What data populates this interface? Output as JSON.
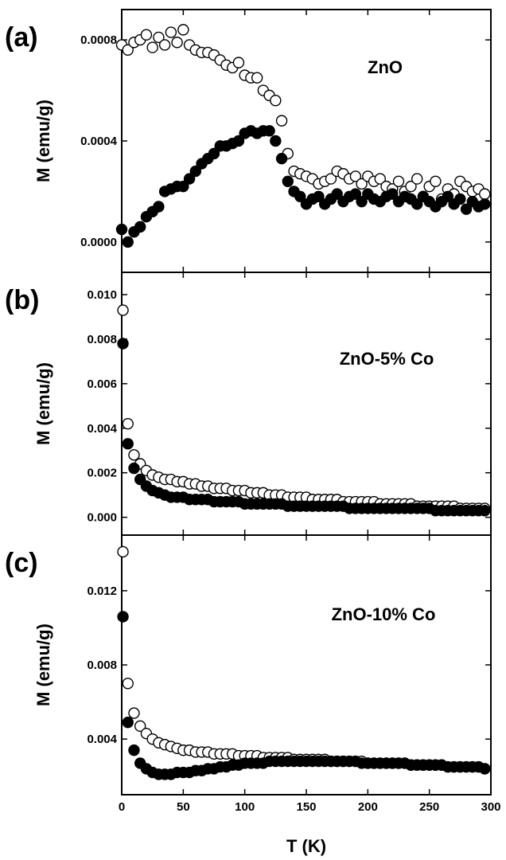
{
  "chart_data": [
    {
      "panel": "(a)",
      "type": "scatter",
      "annotation": "ZnO",
      "ylabel": "M (emu/g)",
      "xlim": [
        0,
        300
      ],
      "ylim": [
        -0.00012,
        0.00092
      ],
      "yticks": [
        0,
        0.0004,
        0.0008
      ],
      "ytick_labels": [
        "0.0000",
        "0.0004",
        "0.0008"
      ],
      "series": [
        {
          "marker": "open-circle",
          "x": [
            0,
            5,
            10,
            15,
            20,
            25,
            30,
            35,
            40,
            45,
            50,
            55,
            60,
            65,
            70,
            75,
            80,
            85,
            90,
            95,
            100,
            105,
            110,
            115,
            120,
            125,
            130,
            135,
            140,
            145,
            150,
            155,
            160,
            165,
            170,
            175,
            180,
            185,
            190,
            195,
            200,
            205,
            210,
            215,
            220,
            225,
            230,
            235,
            240,
            245,
            250,
            255,
            260,
            265,
            270,
            275,
            280,
            285,
            290,
            295
          ],
          "y": [
            0.00078,
            0.00076,
            0.00079,
            0.0008,
            0.00082,
            0.00077,
            0.00081,
            0.00078,
            0.00083,
            0.00079,
            0.00084,
            0.00078,
            0.00076,
            0.00075,
            0.00075,
            0.00074,
            0.00072,
            0.0007,
            0.00069,
            0.00071,
            0.00066,
            0.00065,
            0.00065,
            0.0006,
            0.00058,
            0.00056,
            0.00048,
            0.00035,
            0.00028,
            0.00027,
            0.00026,
            0.00025,
            0.00023,
            0.00024,
            0.00025,
            0.00028,
            0.00027,
            0.00025,
            0.00026,
            0.00023,
            0.00026,
            0.00024,
            0.00025,
            0.00022,
            0.00021,
            0.00024,
            0.0002,
            0.00022,
            0.00025,
            0.00018,
            0.00022,
            0.00024,
            0.00017,
            0.00021,
            0.00019,
            0.00024,
            0.00022,
            0.0002,
            0.00021,
            0.00019
          ]
        },
        {
          "marker": "filled-circle",
          "x": [
            0,
            5,
            10,
            15,
            20,
            25,
            30,
            35,
            40,
            45,
            50,
            55,
            60,
            65,
            70,
            75,
            80,
            85,
            90,
            95,
            100,
            105,
            110,
            115,
            120,
            125,
            130,
            135,
            140,
            145,
            150,
            155,
            160,
            165,
            170,
            175,
            180,
            185,
            190,
            195,
            200,
            205,
            210,
            215,
            220,
            225,
            230,
            235,
            240,
            245,
            250,
            255,
            260,
            265,
            270,
            275,
            280,
            285,
            290,
            295
          ],
          "y": [
            5e-05,
            0.0,
            4e-05,
            6e-05,
            0.0001,
            0.00012,
            0.00014,
            0.0002,
            0.00021,
            0.00022,
            0.00022,
            0.00025,
            0.00028,
            0.00031,
            0.00033,
            0.00035,
            0.00038,
            0.00038,
            0.00039,
            0.0004,
            0.00043,
            0.00044,
            0.00043,
            0.00044,
            0.00044,
            0.0004,
            0.00033,
            0.00024,
            0.0002,
            0.00018,
            0.00015,
            0.00017,
            0.00018,
            0.00015,
            0.00017,
            0.00019,
            0.00016,
            0.00018,
            0.00019,
            0.00016,
            0.00019,
            0.00017,
            0.00016,
            0.00018,
            0.00019,
            0.00016,
            0.00018,
            0.00017,
            0.00015,
            0.00018,
            0.00016,
            0.00014,
            0.00016,
            0.00018,
            0.00015,
            0.00017,
            0.00013,
            0.00016,
            0.00014,
            0.00015
          ]
        }
      ]
    },
    {
      "panel": "(b)",
      "type": "scatter",
      "annotation": "ZnO-5% Co",
      "ylabel": "M (emu/g)",
      "xlim": [
        0,
        300
      ],
      "ylim": [
        -0.0008,
        0.011
      ],
      "yticks": [
        0,
        0.002,
        0.004,
        0.006,
        0.008,
        0.01
      ],
      "ytick_labels": [
        "0.000",
        "0.002",
        "0.004",
        "0.006",
        "0.008",
        "0.010"
      ],
      "series": [
        {
          "marker": "open-circle",
          "x": [
            1,
            5,
            10,
            15,
            20,
            25,
            30,
            35,
            40,
            45,
            50,
            55,
            60,
            65,
            70,
            75,
            80,
            85,
            90,
            95,
            100,
            105,
            110,
            115,
            120,
            125,
            130,
            135,
            140,
            145,
            150,
            155,
            160,
            165,
            170,
            175,
            180,
            185,
            190,
            195,
            200,
            205,
            210,
            215,
            220,
            225,
            230,
            235,
            240,
            245,
            250,
            255,
            260,
            265,
            270,
            275,
            280,
            285,
            290,
            295
          ],
          "y": [
            0.0093,
            0.0042,
            0.0028,
            0.0024,
            0.0021,
            0.0019,
            0.0018,
            0.0017,
            0.0017,
            0.0016,
            0.0016,
            0.0015,
            0.0015,
            0.0014,
            0.0014,
            0.0013,
            0.0013,
            0.0013,
            0.0012,
            0.0012,
            0.0012,
            0.0011,
            0.0011,
            0.0011,
            0.001,
            0.001,
            0.001,
            0.0009,
            0.0009,
            0.0009,
            0.0009,
            0.0008,
            0.0008,
            0.0008,
            0.0008,
            0.0008,
            0.0007,
            0.0007,
            0.0007,
            0.0007,
            0.0007,
            0.0007,
            0.0006,
            0.0006,
            0.0006,
            0.0006,
            0.0006,
            0.0006,
            0.0005,
            0.0005,
            0.0005,
            0.0005,
            0.0005,
            0.0005,
            0.0005,
            0.0004,
            0.0004,
            0.0004,
            0.0004,
            0.0004
          ]
        },
        {
          "marker": "filled-circle",
          "x": [
            1,
            5,
            10,
            15,
            20,
            25,
            30,
            35,
            40,
            45,
            50,
            55,
            60,
            65,
            70,
            75,
            80,
            85,
            90,
            95,
            100,
            105,
            110,
            115,
            120,
            125,
            130,
            135,
            140,
            145,
            150,
            155,
            160,
            165,
            170,
            175,
            180,
            185,
            190,
            195,
            200,
            205,
            210,
            215,
            220,
            225,
            230,
            235,
            240,
            245,
            250,
            255,
            260,
            265,
            270,
            275,
            280,
            285,
            290,
            295
          ],
          "y": [
            0.0078,
            0.0033,
            0.0022,
            0.0017,
            0.0014,
            0.0012,
            0.0011,
            0.001,
            0.0009,
            0.0009,
            0.0009,
            0.0008,
            0.0008,
            0.0008,
            0.0008,
            0.0007,
            0.0007,
            0.0007,
            0.0007,
            0.0007,
            0.0006,
            0.0006,
            0.0006,
            0.0006,
            0.0006,
            0.0006,
            0.0006,
            0.0005,
            0.0005,
            0.0005,
            0.0005,
            0.0005,
            0.0005,
            0.0005,
            0.0005,
            0.0005,
            0.0005,
            0.0004,
            0.0004,
            0.0004,
            0.0004,
            0.0004,
            0.0004,
            0.0004,
            0.0004,
            0.0004,
            0.0004,
            0.0004,
            0.0004,
            0.0004,
            0.0004,
            0.0003,
            0.0003,
            0.0003,
            0.0003,
            0.0003,
            0.0003,
            0.0003,
            0.0003,
            0.0003
          ]
        }
      ]
    },
    {
      "panel": "(c)",
      "type": "scatter",
      "annotation": "ZnO-10% Co",
      "ylabel": "M (emu/g)",
      "xlabel": "T (K)",
      "xlim": [
        0,
        300
      ],
      "ylim": [
        0.001,
        0.015
      ],
      "yticks": [
        0.004,
        0.008,
        0.012
      ],
      "ytick_labels": [
        "0.004",
        "0.008",
        "0.012"
      ],
      "xticks": [
        0,
        50,
        100,
        150,
        200,
        250,
        300
      ],
      "xtick_labels": [
        "0",
        "50",
        "100",
        "150",
        "200",
        "250",
        "300"
      ],
      "series": [
        {
          "marker": "open-circle",
          "x": [
            1,
            5,
            10,
            15,
            20,
            25,
            30,
            35,
            40,
            45,
            50,
            55,
            60,
            65,
            70,
            75,
            80,
            85,
            90,
            95,
            100,
            105,
            110,
            115,
            120,
            125,
            130,
            135,
            140,
            145,
            150,
            155,
            160,
            165,
            170,
            175,
            180,
            185,
            190,
            195,
            200,
            205,
            210,
            215,
            220,
            225,
            230,
            235,
            240,
            245,
            250,
            255,
            260,
            265,
            270,
            275,
            280,
            285,
            290,
            295
          ],
          "y": [
            0.0141,
            0.007,
            0.0054,
            0.0047,
            0.0043,
            0.004,
            0.0038,
            0.0037,
            0.0036,
            0.0035,
            0.0034,
            0.0034,
            0.0033,
            0.0033,
            0.0033,
            0.0032,
            0.0032,
            0.0032,
            0.0032,
            0.0031,
            0.0031,
            0.0031,
            0.0031,
            0.003,
            0.003,
            0.003,
            0.003,
            0.003,
            0.0029,
            0.0029,
            0.0029,
            0.0029,
            0.0029,
            0.0029,
            0.0028,
            0.0028,
            0.0028,
            0.0028,
            0.0028,
            0.0028,
            0.0027,
            0.0027,
            0.0027,
            0.0027,
            0.0027,
            0.0027,
            0.0027,
            0.0026,
            0.0026,
            0.0026,
            0.0026,
            0.0026,
            0.0026,
            0.0025,
            0.0025,
            0.0025,
            0.0025,
            0.0025,
            0.0025,
            0.0024
          ]
        },
        {
          "marker": "filled-circle",
          "x": [
            1,
            5,
            10,
            15,
            20,
            25,
            30,
            35,
            40,
            45,
            50,
            55,
            60,
            65,
            70,
            75,
            80,
            85,
            90,
            95,
            100,
            105,
            110,
            115,
            120,
            125,
            130,
            135,
            140,
            145,
            150,
            155,
            160,
            165,
            170,
            175,
            180,
            185,
            190,
            195,
            200,
            205,
            210,
            215,
            220,
            225,
            230,
            235,
            240,
            245,
            250,
            255,
            260,
            265,
            270,
            275,
            280,
            285,
            290,
            295
          ],
          "y": [
            0.0106,
            0.0049,
            0.0034,
            0.0027,
            0.0024,
            0.0022,
            0.0021,
            0.0021,
            0.0021,
            0.0022,
            0.0022,
            0.0022,
            0.0023,
            0.0023,
            0.0024,
            0.0024,
            0.0025,
            0.0025,
            0.0026,
            0.0026,
            0.0027,
            0.0027,
            0.0027,
            0.0027,
            0.0028,
            0.0028,
            0.0028,
            0.0028,
            0.0028,
            0.0028,
            0.0028,
            0.0028,
            0.0028,
            0.0028,
            0.0028,
            0.0028,
            0.0028,
            0.0028,
            0.0028,
            0.0027,
            0.0027,
            0.0027,
            0.0027,
            0.0027,
            0.0027,
            0.0027,
            0.0027,
            0.0026,
            0.0026,
            0.0026,
            0.0026,
            0.0026,
            0.0026,
            0.0025,
            0.0025,
            0.0025,
            0.0025,
            0.0025,
            0.0025,
            0.0024
          ]
        }
      ]
    }
  ]
}
